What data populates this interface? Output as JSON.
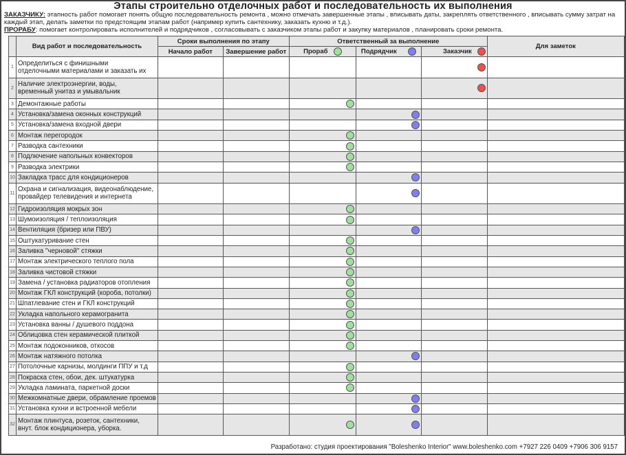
{
  "title": "Этапы строительно отделочных работ и последовательность их выполнения",
  "intro": {
    "client_label": "ЗАКАЗЧИКУ:",
    "client_text": " этапность работ помогает  понять общую последовательность ремонта  , можно отмечать завершенные этапы , вписывать даты, закреплять ответственного , вписывать сумму затрат на каждый этап, делать заметки по предстоящим этапам работ  (например купить сантехнику, заказать кухню и т.д.).",
    "foreman_label": "ПРОРАБУ",
    "foreman_text": ": помогает контролировать исполнителей и подрядчиков , согласовывать с заказчиком этапы работ и закупку материалов  , планировать сроки ремонта."
  },
  "headers": {
    "work": "Вид работ и последовательность",
    "deadlines": "Сроки выполнения по этапу",
    "start": "Начало работ",
    "end": "Завершение работ",
    "responsible": "Ответственный за выполнение",
    "foreman": "Прораб",
    "contractor": "Подрядчик",
    "client": "Заказчик",
    "notes": "Для заметок"
  },
  "colors": {
    "foreman": "#9fe09f",
    "contractor": "#7f7fef",
    "client": "#ef4f4f"
  },
  "rows": [
    {
      "num": "1",
      "text": "Определиться с финишными\nотделочными материалами и заказать их",
      "resp": [
        "client"
      ]
    },
    {
      "num": "2",
      "text": "Наличие электроэнергии, воды,\nвременный унитаз и умывальник",
      "resp": [
        "client"
      ]
    },
    {
      "num": "3",
      "text": "Демонтажные работы",
      "resp": [
        "foreman"
      ]
    },
    {
      "num": "4",
      "text": "Установка/замена оконных конструкций",
      "resp": [
        "contractor"
      ]
    },
    {
      "num": "5",
      "text": "Установка/замена входной двери",
      "resp": [
        "contractor"
      ]
    },
    {
      "num": "6",
      "text": "Монтаж перегородок",
      "resp": [
        "foreman"
      ]
    },
    {
      "num": "7",
      "text": "Разводка сантехники",
      "resp": [
        "foreman"
      ]
    },
    {
      "num": "8",
      "text": "Подлючение напольных конвекторов",
      "resp": [
        "foreman"
      ]
    },
    {
      "num": "9",
      "text": "Разводка электрики",
      "resp": [
        "foreman"
      ]
    },
    {
      "num": "10",
      "text": "Закладка трасс для кондиционеров",
      "resp": [
        "contractor"
      ]
    },
    {
      "num": "11",
      "text": "Охрана и сигнализация, видеонаблюдение,\nпровайдер телевидения и интернета",
      "resp": [
        "contractor"
      ]
    },
    {
      "num": "12",
      "text": "Гидроизоляция мокрых зон",
      "resp": [
        "foreman"
      ]
    },
    {
      "num": "13",
      "text": "Шумоизоляция / теплоизоляция",
      "resp": [
        "foreman"
      ]
    },
    {
      "num": "14",
      "text": "Вентиляция (бризер или ПВУ)",
      "resp": [
        "contractor"
      ]
    },
    {
      "num": "15",
      "text": "Оштукатуривание стен",
      "resp": [
        "foreman"
      ]
    },
    {
      "num": "16",
      "text": "Заливка \"черновой\" стяжки",
      "resp": [
        "foreman"
      ]
    },
    {
      "num": "17",
      "text": "Монтаж электрического теплого пола",
      "resp": [
        "foreman"
      ]
    },
    {
      "num": "18",
      "text": "Заливка чистовой стяжки",
      "resp": [
        "foreman"
      ]
    },
    {
      "num": "19",
      "text": "Замена / установка радиаторов отопления",
      "resp": [
        "foreman"
      ]
    },
    {
      "num": "20",
      "text": "Монтаж ГКЛ конструкций  (короба, потолки)",
      "resp": [
        "foreman"
      ]
    },
    {
      "num": "21",
      "text": "Шпатлевание стен и ГКЛ конструкций",
      "resp": [
        "foreman"
      ]
    },
    {
      "num": "22",
      "text": "Укладка напольного керамогранита",
      "resp": [
        "foreman"
      ]
    },
    {
      "num": "23",
      "text": "Установка ванны  / душевого поддона",
      "resp": [
        "foreman"
      ]
    },
    {
      "num": "24",
      "text": "Облицовка стен керамической плиткой",
      "resp": [
        "foreman"
      ]
    },
    {
      "num": "25",
      "text": "Монтаж подоконников, откосов",
      "resp": [
        "foreman"
      ]
    },
    {
      "num": "26",
      "text": "Монтаж натяжного потолка",
      "resp": [
        "contractor"
      ]
    },
    {
      "num": "27",
      "text": "Потолочные карнизы, молдинги ППУ и т.д",
      "resp": [
        "foreman"
      ]
    },
    {
      "num": "28",
      "text": "Покраска стен, обои, дек. штукатурка",
      "resp": [
        "foreman"
      ]
    },
    {
      "num": "29",
      "text": "Укладка ламината, паркетной доски",
      "resp": [
        "foreman"
      ]
    },
    {
      "num": "30",
      "text": "Межкомнатные двери, обрамление проемов",
      "resp": [
        "contractor"
      ]
    },
    {
      "num": "31",
      "text": "Установка кухни и встроенной мебели",
      "resp": [
        "contractor"
      ]
    },
    {
      "num": "32",
      "text": "Монтаж плинтуса, розеток, сантехники,\nвнут. блок кондиционера, уборка.",
      "resp": [
        "foreman",
        "contractor"
      ]
    }
  ],
  "footer": "Разработано: студия проектирования \"Boleshenko Interior\" www.boleshenko.com    +7927 226 0409    +7906 306 9157"
}
